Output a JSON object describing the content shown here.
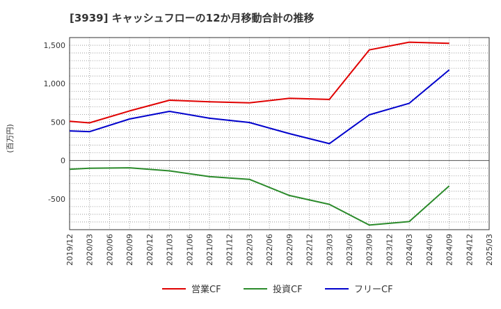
{
  "chart_data": {
    "type": "line",
    "title": "[3939]  キャッシュフローの12か月移動合計の推移",
    "ylabel": "(百万円)",
    "xlabel": "",
    "ylim": [
      -900,
      1600
    ],
    "y_ticks": [
      -500,
      0,
      500,
      1000,
      1500
    ],
    "y_tick_labels": [
      "-500",
      "0",
      "500",
      "1,000",
      "1,500"
    ],
    "categories": [
      "2019/12",
      "2020/03",
      "2020/06",
      "2020/09",
      "2020/12",
      "2021/03",
      "2021/06",
      "2021/09",
      "2021/12",
      "2022/03",
      "2022/06",
      "2022/09",
      "2022/12",
      "2023/03",
      "2023/06",
      "2023/09",
      "2023/12",
      "2024/03",
      "2024/06",
      "2024/09",
      "2024/12",
      "2025/03"
    ],
    "grid": true,
    "legend_position": "bottom-center",
    "series": [
      {
        "name": "営業CF",
        "color": "#e00000",
        "values": [
          510,
          490,
          null,
          645,
          null,
          785,
          null,
          765,
          null,
          750,
          null,
          810,
          null,
          795,
          null,
          1440,
          null,
          1540,
          null,
          1525,
          null,
          null
        ]
      },
      {
        "name": "投資CF",
        "color": "#2a8a2a",
        "values": [
          -115,
          -100,
          null,
          -95,
          null,
          -135,
          null,
          -210,
          null,
          -245,
          null,
          -455,
          null,
          -570,
          null,
          -840,
          null,
          -795,
          null,
          -330,
          null,
          null
        ]
      },
      {
        "name": "フリーCF",
        "color": "#0000cc",
        "values": [
          385,
          375,
          null,
          540,
          null,
          640,
          null,
          550,
          null,
          495,
          null,
          350,
          null,
          220,
          null,
          595,
          null,
          745,
          null,
          1180,
          null,
          null
        ]
      }
    ]
  }
}
